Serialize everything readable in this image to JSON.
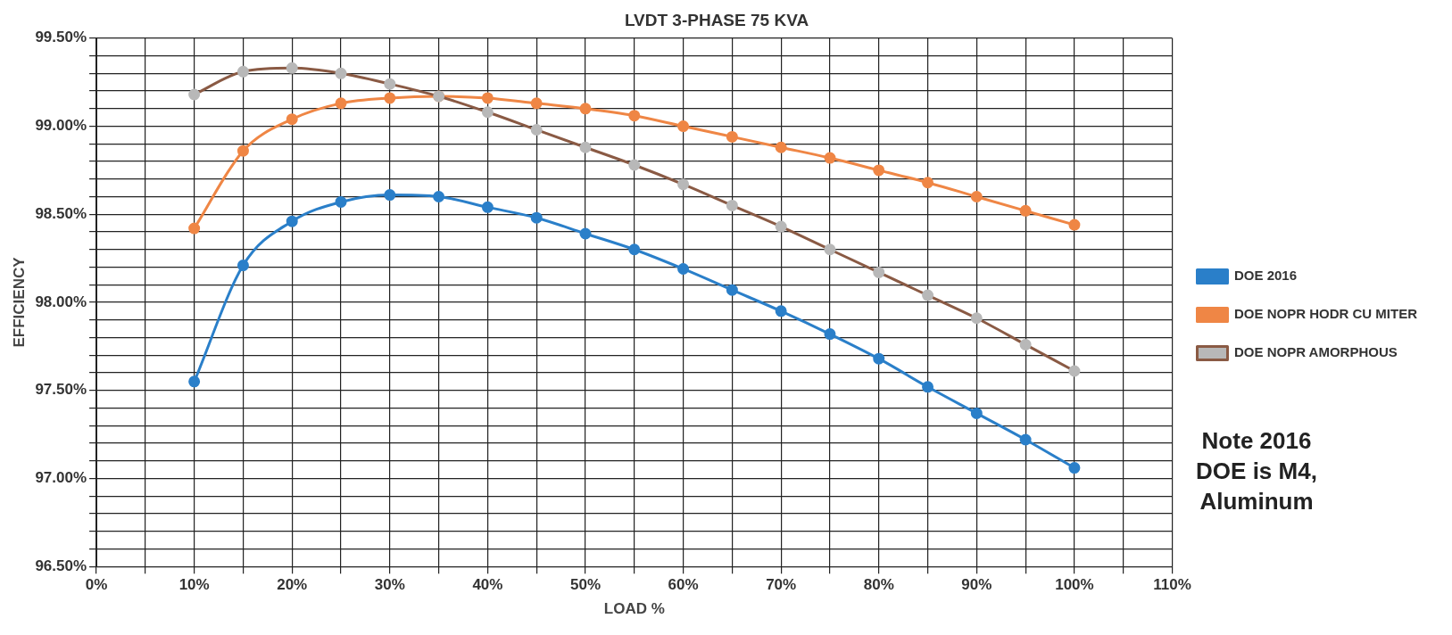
{
  "chart_data": {
    "type": "line",
    "title": "LVDT 3-PHASE 75 KVA",
    "xlabel": "LOAD %",
    "ylabel": "EFFICIENCY",
    "x": [
      10,
      15,
      20,
      25,
      30,
      35,
      40,
      45,
      50,
      55,
      60,
      65,
      70,
      75,
      80,
      85,
      90,
      95,
      100
    ],
    "xlim": [
      0,
      110
    ],
    "xticks": [
      {
        "value": 0,
        "label": "0%"
      },
      {
        "value": 5,
        "label": null
      },
      {
        "value": 10,
        "label": "10%"
      },
      {
        "value": 15,
        "label": null
      },
      {
        "value": 20,
        "label": "20%"
      },
      {
        "value": 25,
        "label": null
      },
      {
        "value": 30,
        "label": "30%"
      },
      {
        "value": 35,
        "label": null
      },
      {
        "value": 40,
        "label": "40%"
      },
      {
        "value": 45,
        "label": null
      },
      {
        "value": 50,
        "label": "50%"
      },
      {
        "value": 55,
        "label": null
      },
      {
        "value": 60,
        "label": "60%"
      },
      {
        "value": 65,
        "label": null
      },
      {
        "value": 70,
        "label": "70%"
      },
      {
        "value": 75,
        "label": null
      },
      {
        "value": 80,
        "label": "80%"
      },
      {
        "value": 85,
        "label": null
      },
      {
        "value": 90,
        "label": "90%"
      },
      {
        "value": 95,
        "label": null
      },
      {
        "value": 100,
        "label": "100%"
      },
      {
        "value": 105,
        "label": null
      },
      {
        "value": 110,
        "label": "110%"
      }
    ],
    "ylim": [
      96.5,
      99.5
    ],
    "yticks": [
      {
        "value": 96.5,
        "label": "96.50%"
      },
      {
        "value": 96.6,
        "label": null
      },
      {
        "value": 96.7,
        "label": null
      },
      {
        "value": 96.8,
        "label": null
      },
      {
        "value": 96.9,
        "label": null
      },
      {
        "value": 97.0,
        "label": "97.00%"
      },
      {
        "value": 97.1,
        "label": null
      },
      {
        "value": 97.2,
        "label": null
      },
      {
        "value": 97.3,
        "label": null
      },
      {
        "value": 97.4,
        "label": null
      },
      {
        "value": 97.5,
        "label": "97.50%"
      },
      {
        "value": 97.6,
        "label": null
      },
      {
        "value": 97.7,
        "label": null
      },
      {
        "value": 97.8,
        "label": null
      },
      {
        "value": 97.9,
        "label": null
      },
      {
        "value": 98.0,
        "label": "98.00%"
      },
      {
        "value": 98.1,
        "label": null
      },
      {
        "value": 98.2,
        "label": null
      },
      {
        "value": 98.3,
        "label": null
      },
      {
        "value": 98.4,
        "label": null
      },
      {
        "value": 98.5,
        "label": "98.50%"
      },
      {
        "value": 98.6,
        "label": null
      },
      {
        "value": 98.7,
        "label": null
      },
      {
        "value": 98.8,
        "label": null
      },
      {
        "value": 98.9,
        "label": null
      },
      {
        "value": 99.0,
        "label": "99.00%"
      },
      {
        "value": 99.1,
        "label": null
      },
      {
        "value": 99.2,
        "label": null
      },
      {
        "value": 99.3,
        "label": null
      },
      {
        "value": 99.4,
        "label": null
      },
      {
        "value": 99.5,
        "label": "99.50%"
      }
    ],
    "grid": true,
    "legend": "right",
    "marker": "circle",
    "line_style": "solid",
    "series": [
      {
        "name": "DOE 2016",
        "color": "#2a7fc9",
        "values": [
          97.55,
          98.21,
          98.46,
          98.57,
          98.61,
          98.6,
          98.54,
          98.48,
          98.39,
          98.3,
          98.19,
          98.07,
          97.95,
          97.82,
          97.68,
          97.52,
          97.37,
          97.22,
          97.06
        ]
      },
      {
        "name": "DOE NOPR HODR CU MITER",
        "color": "#ef8645",
        "values": [
          98.42,
          98.86,
          99.04,
          99.13,
          99.16,
          99.17,
          99.16,
          99.13,
          99.1,
          99.06,
          99.0,
          98.94,
          98.88,
          98.82,
          98.75,
          98.68,
          98.6,
          98.52,
          98.44
        ]
      },
      {
        "name": "DOE NOPR AMORPHOUS",
        "color": "#8a5a44",
        "colors": [
          "#b8b8b8",
          "#b8b8b8",
          "#b8b8b8",
          "#b8b8b8",
          "#b8b8b8",
          "#b8b8b8",
          "#b8b8b8",
          "#b8b8b8",
          "#b8b8b8",
          "#b8b8b8",
          "#b8b8b8",
          "#b8b8b8",
          "#b8b8b8",
          "#b8b8b8",
          "#b8b8b8",
          "#b8b8b8",
          "#b8b8b8",
          "#b8b8b8",
          "#b8b8b8"
        ],
        "values": [
          99.18,
          99.31,
          99.33,
          99.3,
          99.24,
          99.17,
          99.08,
          98.98,
          98.88,
          98.78,
          98.67,
          98.55,
          98.43,
          98.3,
          98.17,
          98.04,
          97.91,
          97.76,
          97.61
        ]
      }
    ],
    "annotations": [
      "Note 2016\nDOE is M4,\nAluminum"
    ]
  }
}
